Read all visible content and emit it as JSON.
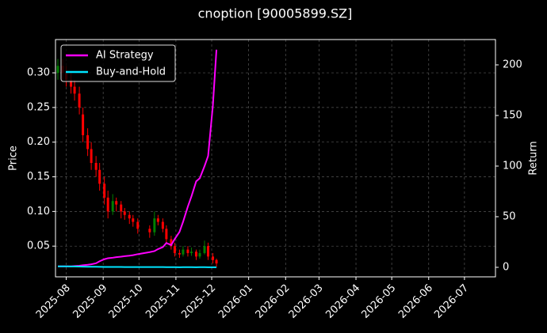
{
  "chart_data": {
    "type": "candlestick",
    "title": "cnoption [90005899.SZ]",
    "y_label": "Price",
    "y2_label": "Return",
    "x": [
      "2025-07-25",
      "2025-07-29",
      "2025-08-01",
      "2025-08-05",
      "2025-08-08",
      "2025-08-12",
      "2025-08-15",
      "2025-08-19",
      "2025-08-22",
      "2025-08-26",
      "2025-08-29",
      "2025-09-02",
      "2025-09-05",
      "2025-09-09",
      "2025-09-12",
      "2025-09-16",
      "2025-09-19",
      "2025-09-23",
      "2025-09-26",
      "2025-09-30",
      "2025-10-10",
      "2025-10-14",
      "2025-10-17",
      "2025-10-21",
      "2025-10-24",
      "2025-10-28",
      "2025-10-31",
      "2025-11-04",
      "2025-11-07",
      "2025-11-11",
      "2025-11-14",
      "2025-11-18",
      "2025-11-21",
      "2025-11-25",
      "2025-11-28",
      "2025-12-02",
      "2025-12-05"
    ],
    "open": [
      0.3,
      0.31,
      0.3,
      0.29,
      0.28,
      0.27,
      0.24,
      0.21,
      0.19,
      0.17,
      0.16,
      0.14,
      0.12,
      0.1,
      0.115,
      0.11,
      0.1,
      0.095,
      0.09,
      0.085,
      0.075,
      0.07,
      0.09,
      0.085,
      0.075,
      0.06,
      0.05,
      0.04,
      0.038,
      0.045,
      0.04,
      0.042,
      0.035,
      0.04,
      0.05,
      0.035,
      0.03
    ],
    "high": [
      0.32,
      0.32,
      0.31,
      0.3,
      0.29,
      0.28,
      0.25,
      0.22,
      0.2,
      0.18,
      0.17,
      0.15,
      0.13,
      0.125,
      0.12,
      0.115,
      0.105,
      0.1,
      0.095,
      0.09,
      0.08,
      0.1,
      0.095,
      0.09,
      0.08,
      0.065,
      0.055,
      0.045,
      0.05,
      0.05,
      0.048,
      0.045,
      0.045,
      0.058,
      0.055,
      0.04,
      0.032
    ],
    "low": [
      0.29,
      0.29,
      0.28,
      0.27,
      0.26,
      0.24,
      0.2,
      0.18,
      0.16,
      0.15,
      0.13,
      0.11,
      0.09,
      0.095,
      0.1,
      0.09,
      0.088,
      0.082,
      0.078,
      0.068,
      0.062,
      0.065,
      0.08,
      0.07,
      0.055,
      0.045,
      0.035,
      0.033,
      0.035,
      0.035,
      0.036,
      0.03,
      0.032,
      0.038,
      0.03,
      0.025,
      0.02
    ],
    "close": [
      0.31,
      0.3,
      0.29,
      0.28,
      0.27,
      0.25,
      0.21,
      0.19,
      0.17,
      0.16,
      0.14,
      0.12,
      0.1,
      0.115,
      0.11,
      0.1,
      0.095,
      0.09,
      0.085,
      0.075,
      0.07,
      0.09,
      0.085,
      0.075,
      0.06,
      0.05,
      0.04,
      0.038,
      0.045,
      0.04,
      0.042,
      0.035,
      0.04,
      0.05,
      0.035,
      0.03,
      0.025
    ],
    "up_color": "#008000",
    "down_color": "#ff0000",
    "series": [
      {
        "name": "AI Strategy",
        "color": "#ff00ff",
        "axis": "y2",
        "values": [
          1,
          1,
          1,
          1,
          1.2,
          1.5,
          2,
          2.5,
          3,
          4,
          6,
          8,
          9,
          9.5,
          10,
          10.5,
          11,
          11.5,
          12,
          13,
          15,
          16,
          18,
          20,
          24,
          22,
          28,
          35,
          45,
          60,
          70,
          85,
          88,
          100,
          110,
          160,
          215
        ]
      },
      {
        "name": "Buy-and-Hold",
        "color": "#00e5ff",
        "axis": "y2",
        "values": [
          1,
          0.97,
          0.94,
          0.9,
          0.87,
          0.8,
          0.68,
          0.61,
          0.55,
          0.52,
          0.45,
          0.39,
          0.32,
          0.37,
          0.35,
          0.32,
          0.31,
          0.29,
          0.27,
          0.24,
          0.23,
          0.29,
          0.27,
          0.24,
          0.19,
          0.16,
          0.13,
          0.12,
          0.15,
          0.13,
          0.14,
          0.11,
          0.13,
          0.16,
          0.11,
          0.1,
          0.08
        ]
      }
    ],
    "xlim": [
      "2025-07-23",
      "2026-07-27"
    ],
    "xticks": [
      "2025-08",
      "2025-09",
      "2025-10",
      "2025-11",
      "2025-12",
      "2026-01",
      "2026-02",
      "2026-03",
      "2026-04",
      "2026-05",
      "2026-06",
      "2026-07"
    ],
    "ylim": [
      0.0057,
      0.348
    ],
    "yticks": [
      0.05,
      {
        "value": 0.1,
        "label": "0.10"
      },
      0.15,
      {
        "value": 0.2,
        "label": "0.20"
      },
      0.25,
      {
        "value": 0.3,
        "label": "0.30"
      }
    ],
    "y2lim": [
      -9.4,
      225
    ],
    "y2ticks": [
      0,
      50,
      100,
      150,
      200
    ],
    "grid": true,
    "legend": "upper left"
  }
}
